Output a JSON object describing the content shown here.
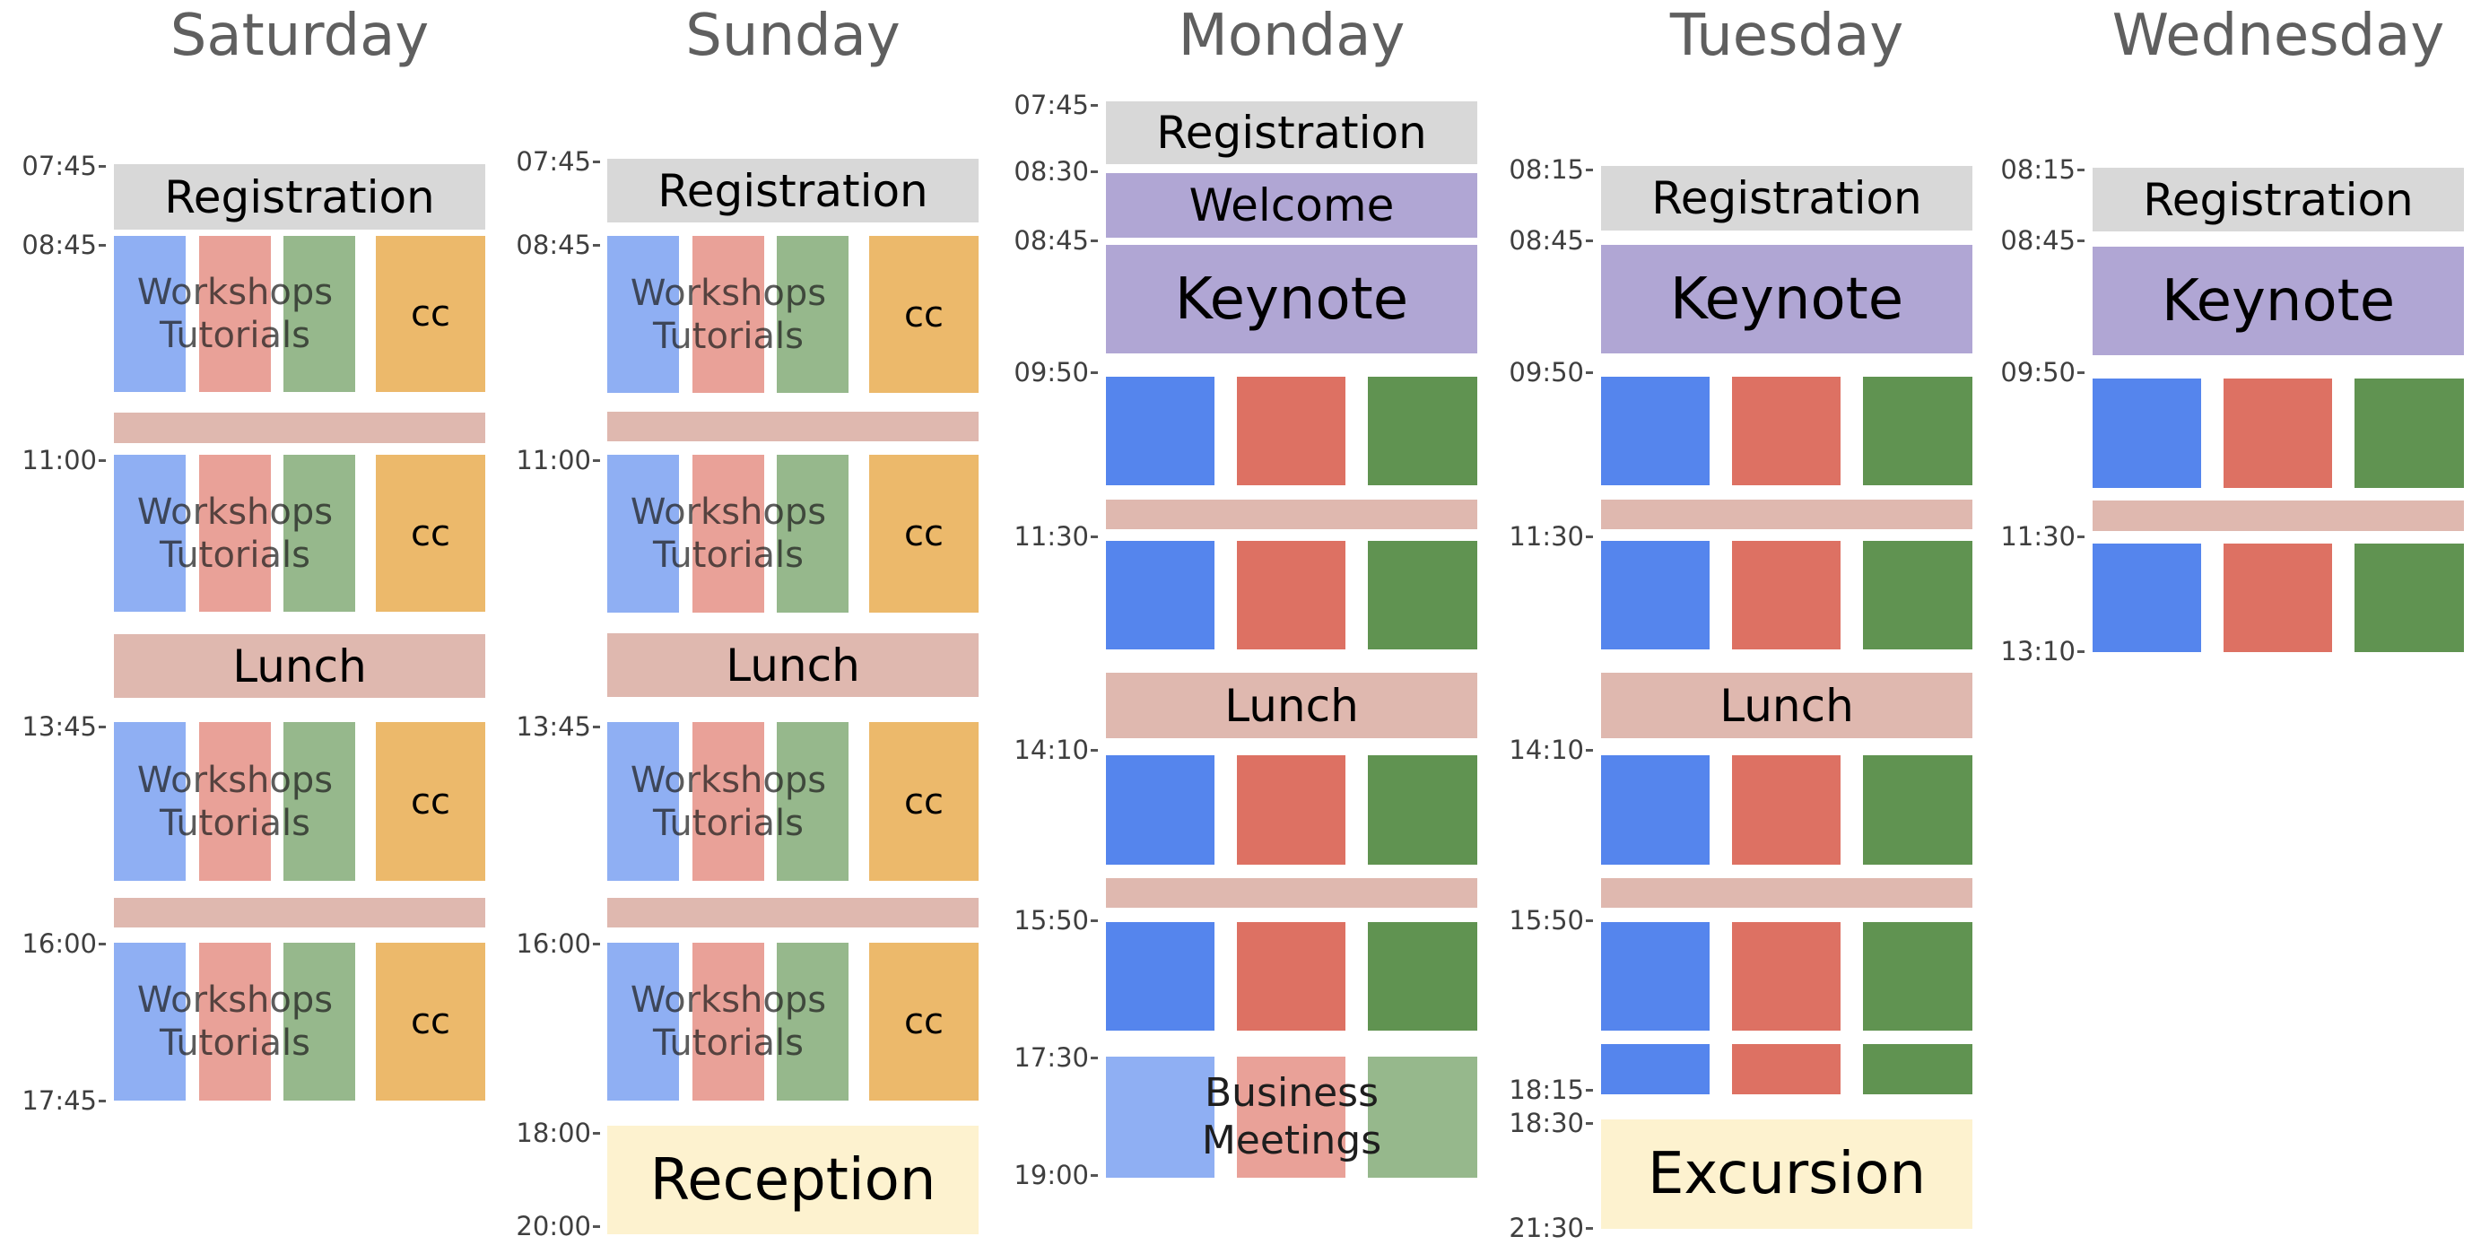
{
  "colors": {
    "registration": "#d8d8d8",
    "welcome_keynote": "#b0a6d4",
    "break_lunch": "#dfb8af",
    "track_blue": "#5585ed",
    "track_red": "#dd7163",
    "track_green": "#609351",
    "cc_orange": "#ecb96b",
    "social": "#fdf2cf",
    "axis_text": "#3f3f3f",
    "title_text": "#5f5f5f"
  },
  "days": [
    {
      "name": "Saturday",
      "ticks": [
        "07:45",
        "08:45",
        "11:00",
        "13:45",
        "16:00",
        "17:45"
      ],
      "blocks": [
        {
          "kind": "registration",
          "label": "Registration"
        },
        {
          "kind": "workshops",
          "label": "Workshops\nTutorials",
          "cc_label": "cc"
        },
        {
          "kind": "break",
          "label": ""
        },
        {
          "kind": "workshops",
          "label": "Workshops\nTutorials",
          "cc_label": "cc"
        },
        {
          "kind": "lunch",
          "label": "Lunch"
        },
        {
          "kind": "workshops",
          "label": "Workshops\nTutorials",
          "cc_label": "cc"
        },
        {
          "kind": "break",
          "label": ""
        },
        {
          "kind": "workshops",
          "label": "Workshops\nTutorials",
          "cc_label": "cc"
        }
      ]
    },
    {
      "name": "Sunday",
      "ticks": [
        "07:45",
        "08:45",
        "11:00",
        "13:45",
        "16:00",
        "18:00",
        "20:00"
      ],
      "blocks": [
        {
          "kind": "registration",
          "label": "Registration"
        },
        {
          "kind": "workshops",
          "label": "Workshops\nTutorials",
          "cc_label": "cc"
        },
        {
          "kind": "break",
          "label": ""
        },
        {
          "kind": "workshops",
          "label": "Workshops\nTutorials",
          "cc_label": "cc"
        },
        {
          "kind": "lunch",
          "label": "Lunch"
        },
        {
          "kind": "workshops",
          "label": "Workshops\nTutorials",
          "cc_label": "cc"
        },
        {
          "kind": "break",
          "label": ""
        },
        {
          "kind": "workshops",
          "label": "Workshops\nTutorials",
          "cc_label": "cc"
        },
        {
          "kind": "social",
          "label": "Reception"
        }
      ]
    },
    {
      "name": "Monday",
      "ticks": [
        "07:45",
        "08:30",
        "08:45",
        "09:50",
        "11:30",
        "14:10",
        "15:50",
        "17:30",
        "19:00"
      ],
      "blocks": [
        {
          "kind": "registration",
          "label": "Registration"
        },
        {
          "kind": "welcome",
          "label": "Welcome"
        },
        {
          "kind": "keynote",
          "label": "Keynote"
        },
        {
          "kind": "tracks",
          "label": ""
        },
        {
          "kind": "break",
          "label": ""
        },
        {
          "kind": "tracks",
          "label": ""
        },
        {
          "kind": "lunch",
          "label": "Lunch"
        },
        {
          "kind": "tracks",
          "label": ""
        },
        {
          "kind": "break",
          "label": ""
        },
        {
          "kind": "tracks",
          "label": ""
        },
        {
          "kind": "meetings",
          "label": "Business\nMeetings"
        }
      ]
    },
    {
      "name": "Tuesday",
      "ticks": [
        "08:15",
        "08:45",
        "09:50",
        "11:30",
        "14:10",
        "15:50",
        "18:15",
        "18:30",
        "21:30"
      ],
      "blocks": [
        {
          "kind": "registration",
          "label": "Registration"
        },
        {
          "kind": "keynote",
          "label": "Keynote"
        },
        {
          "kind": "tracks",
          "label": ""
        },
        {
          "kind": "break",
          "label": ""
        },
        {
          "kind": "tracks",
          "label": ""
        },
        {
          "kind": "lunch",
          "label": "Lunch"
        },
        {
          "kind": "tracks",
          "label": ""
        },
        {
          "kind": "break",
          "label": ""
        },
        {
          "kind": "tracks",
          "label": ""
        },
        {
          "kind": "tracks",
          "label": ""
        },
        {
          "kind": "social",
          "label": "Excursion"
        }
      ]
    },
    {
      "name": "Wednesday",
      "ticks": [
        "08:15",
        "08:45",
        "09:50",
        "11:30",
        "13:10"
      ],
      "blocks": [
        {
          "kind": "registration",
          "label": "Registration"
        },
        {
          "kind": "keynote",
          "label": "Keynote"
        },
        {
          "kind": "tracks",
          "label": ""
        },
        {
          "kind": "break",
          "label": ""
        },
        {
          "kind": "tracks",
          "label": ""
        }
      ]
    }
  ]
}
